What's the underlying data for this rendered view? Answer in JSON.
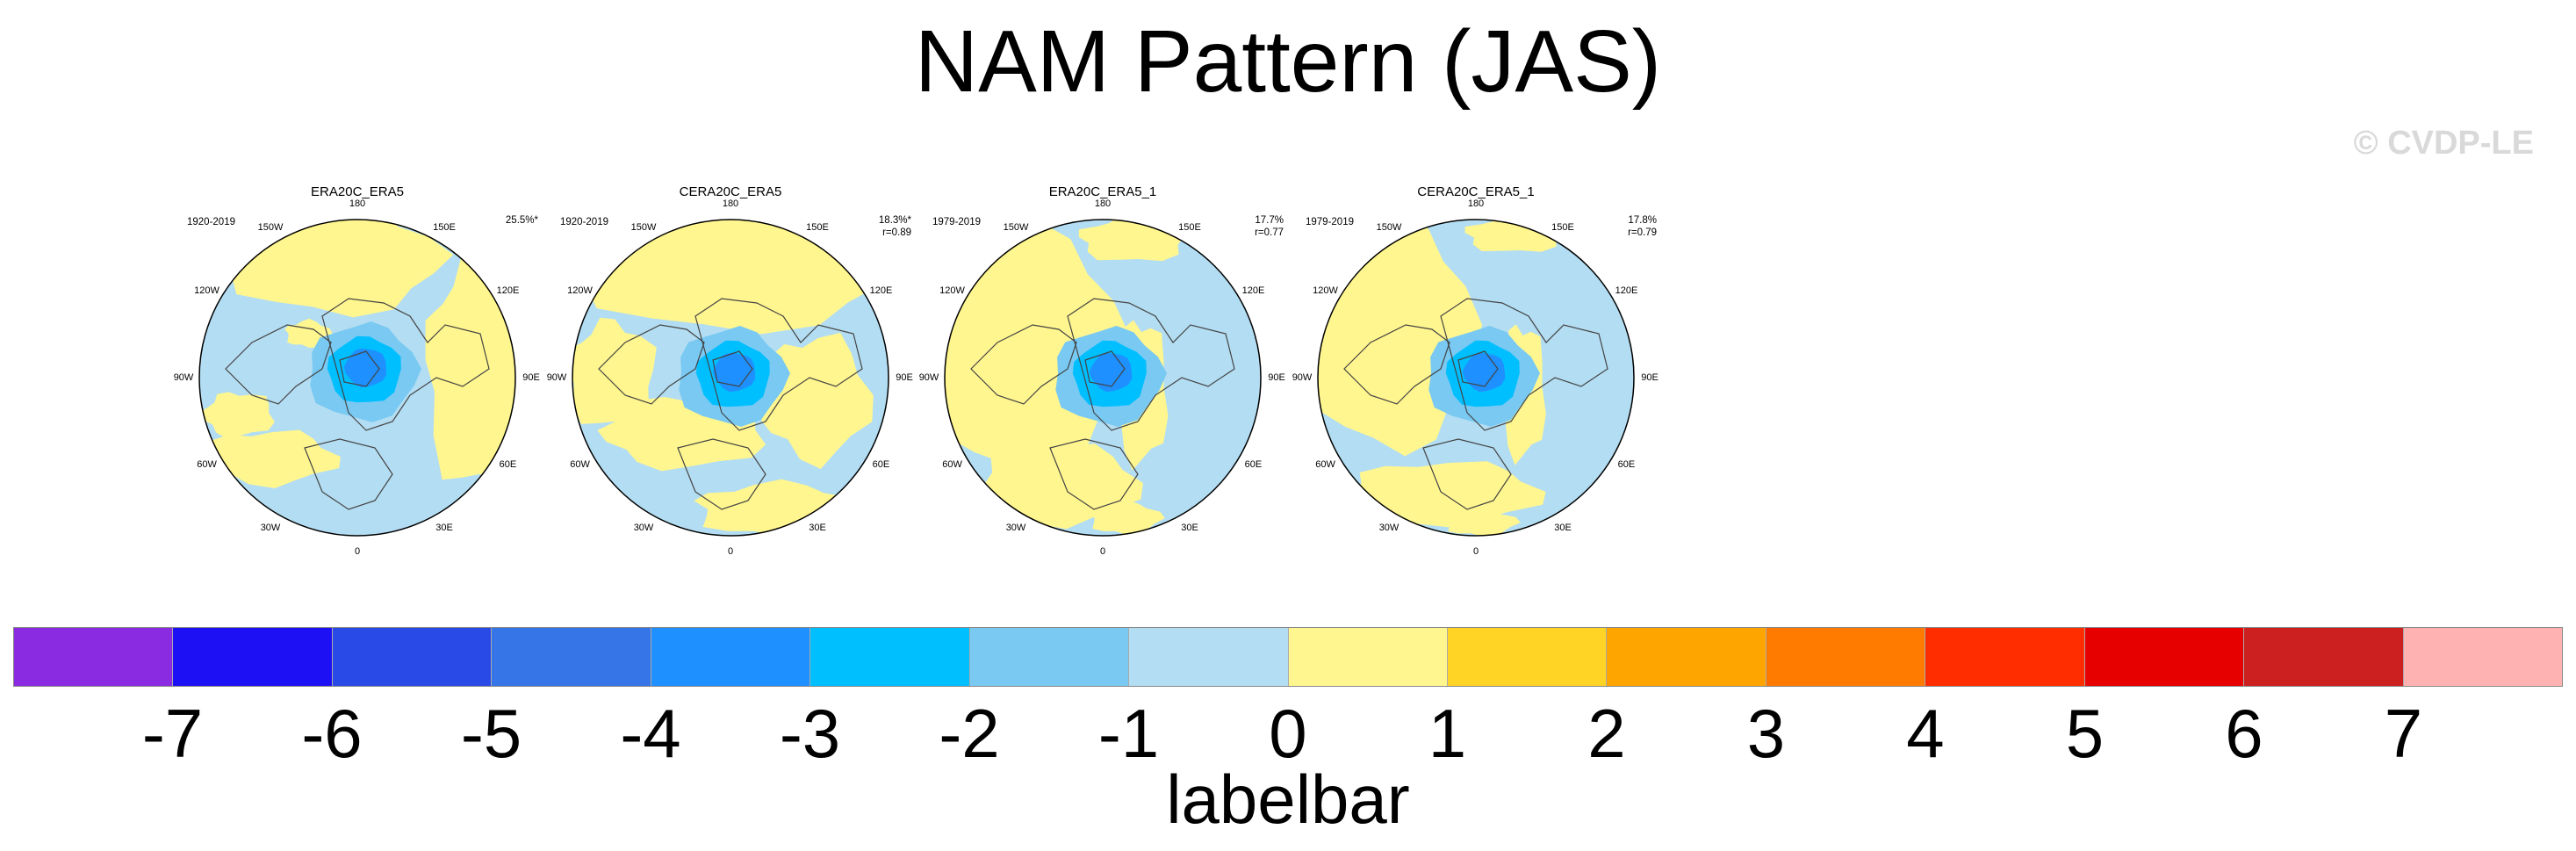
{
  "title": "NAM Pattern (JAS)",
  "copyright": "© CVDP-LE",
  "lon_labels": [
    "180",
    "150E",
    "120E",
    "90E",
    "60E",
    "30E",
    "0",
    "30W",
    "60W",
    "90W",
    "120W",
    "150W"
  ],
  "chart_data": [
    {
      "type": "heatmap",
      "projection": "polar stereographic (Northern Hemisphere)",
      "title": "ERA20C_ERA5",
      "period": "1920-2019",
      "pct_variance": "25.5%*",
      "r": ""
    },
    {
      "type": "heatmap",
      "projection": "polar stereographic (Northern Hemisphere)",
      "title": "CERA20C_ERA5",
      "period": "1920-2019",
      "pct_variance": "18.3%*",
      "r": "r=0.89"
    },
    {
      "type": "heatmap",
      "projection": "polar stereographic (Northern Hemisphere)",
      "title": "ERA20C_ERA5_1",
      "period": "1979-2019",
      "pct_variance": "17.7%",
      "r": "r=0.77"
    },
    {
      "type": "heatmap",
      "projection": "polar stereographic (Northern Hemisphere)",
      "title": "CERA20C_ERA5_1",
      "period": "1979-2019",
      "pct_variance": "17.8%",
      "r": "r=0.79"
    }
  ],
  "colorbar": {
    "label": "labelbar",
    "ticks": [
      "-7",
      "-6",
      "-5",
      "-4",
      "-3",
      "-2",
      "-1",
      "0",
      "1",
      "2",
      "3",
      "4",
      "5",
      "6",
      "7"
    ],
    "colors": [
      "#8a2be2",
      "#1e10f5",
      "#2a4ae8",
      "#3575e8",
      "#1e90ff",
      "#00bfff",
      "#79c9f2",
      "#b3ddf2",
      "#fff68f",
      "#ffd425",
      "#ffa500",
      "#ff7b00",
      "#ff2d00",
      "#e60000",
      "#cc1f1f",
      "#ffb2b2"
    ]
  }
}
